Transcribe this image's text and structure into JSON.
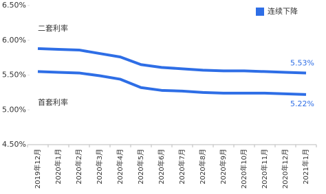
{
  "chart_data": {
    "type": "line",
    "categories": [
      "2019年12月",
      "2020年1月",
      "2020年2月",
      "2020年3月",
      "2020年4月",
      "2020年5月",
      "2020年6月",
      "2020年7月",
      "2020年8月",
      "2020年9月",
      "2020年10月",
      "2020年11月",
      "2020年12月",
      "2021年1月"
    ],
    "series": [
      {
        "name": "二套利率",
        "color": "#2e6ee6",
        "values": [
          5.88,
          5.87,
          5.86,
          5.81,
          5.76,
          5.65,
          5.61,
          5.59,
          5.57,
          5.56,
          5.56,
          5.55,
          5.54,
          5.53
        ],
        "value_labels": [
          null,
          null,
          null,
          null,
          null,
          null,
          null,
          null,
          null,
          null,
          null,
          null,
          null,
          "5.53%"
        ]
      },
      {
        "name": "首套利率",
        "color": "#2e6ee6",
        "values": [
          5.55,
          5.54,
          5.53,
          5.49,
          5.44,
          5.32,
          5.28,
          5.27,
          5.25,
          5.24,
          5.24,
          5.24,
          5.23,
          5.22
        ],
        "value_labels": [
          null,
          null,
          null,
          null,
          null,
          null,
          null,
          null,
          null,
          null,
          null,
          null,
          null,
          "5.22%"
        ]
      }
    ],
    "legend": {
      "label": "连续下降",
      "color": "#2e6ee6",
      "position": "upper right"
    },
    "ylim": [
      4.5,
      6.5
    ],
    "yticks": [
      {
        "value": 4.5,
        "label": "4.50%"
      },
      {
        "value": 5.0,
        "label": "5.00%"
      },
      {
        "value": 5.5,
        "label": "5.50%"
      },
      {
        "value": 6.0,
        "label": "6.00%"
      },
      {
        "value": 6.5,
        "label": "6.50%"
      }
    ],
    "grid": false
  }
}
